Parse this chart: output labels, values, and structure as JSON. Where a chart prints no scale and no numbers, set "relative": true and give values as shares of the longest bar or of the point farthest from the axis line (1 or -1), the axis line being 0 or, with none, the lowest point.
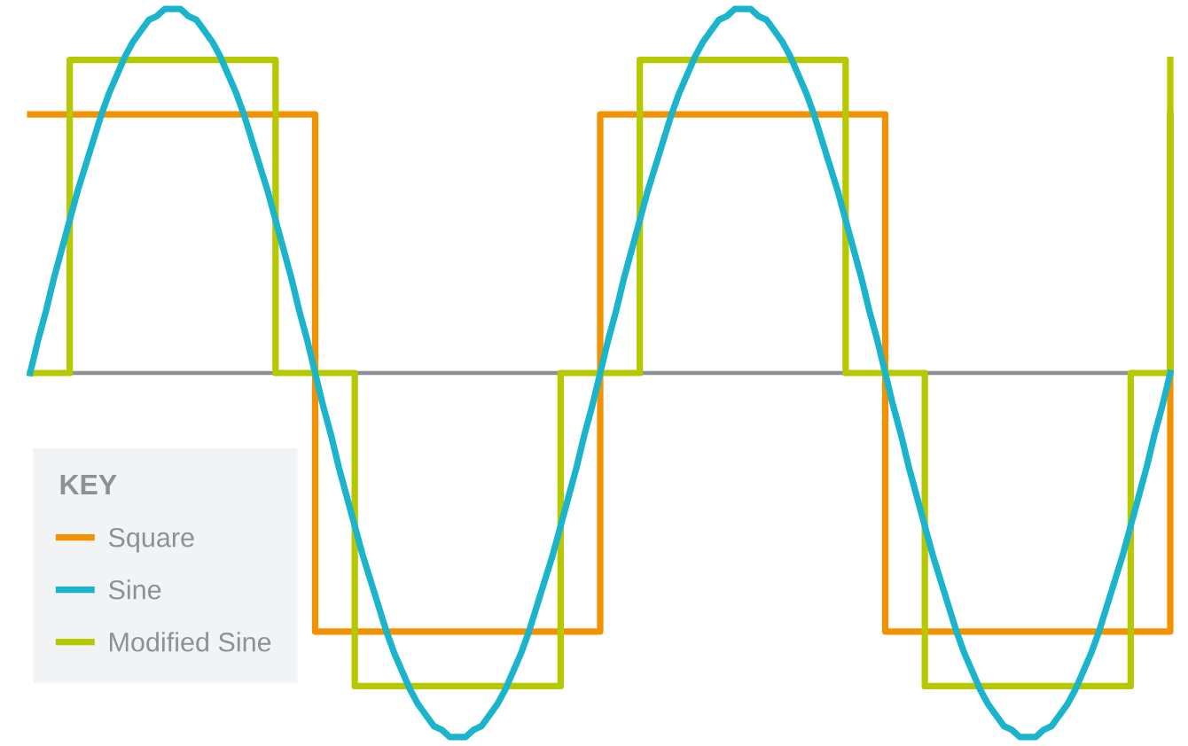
{
  "chart_data": {
    "type": "line",
    "relative": true,
    "legend_title": "KEY",
    "legend": "bottom left",
    "marker": "none",
    "line_style": "solid",
    "categories": [
      null,
      null,
      null,
      null,
      null,
      null,
      null,
      null,
      null,
      null,
      null,
      null,
      null,
      null,
      null,
      null,
      null,
      null,
      null,
      null,
      null,
      null,
      null,
      null,
      null,
      null,
      null,
      null,
      null,
      null,
      null,
      null,
      null,
      null,
      null,
      null,
      null,
      null,
      null,
      null,
      null,
      null,
      null,
      null,
      null,
      null,
      null,
      null,
      null,
      null,
      null,
      null,
      null,
      null,
      null,
      null,
      null,
      null,
      null,
      null,
      null,
      null,
      null,
      null,
      null,
      null,
      null,
      null,
      null,
      null,
      null,
      null,
      null,
      null,
      null,
      null,
      null,
      null,
      null,
      null,
      null,
      null,
      null,
      null,
      null,
      null,
      null,
      null,
      null,
      null,
      null,
      null,
      null,
      null,
      null,
      null,
      null,
      null,
      null,
      null,
      null,
      null,
      null,
      null,
      null,
      null,
      null,
      null,
      null,
      null,
      null,
      null,
      null,
      null,
      null,
      null,
      null,
      null,
      null,
      null,
      null,
      null,
      null,
      null,
      null,
      null,
      null,
      null,
      null,
      null,
      null,
      null,
      null,
      null,
      null,
      null,
      null,
      null,
      null,
      null,
      null,
      null,
      null,
      null,
      null
    ],
    "series": [
      {
        "name": "Square",
        "type": "step",
        "color": "#f39200",
        "values": [
          0.71,
          0.71,
          0.71,
          0.71,
          0.71,
          0.71,
          0.71,
          0.71,
          0.71,
          0.71,
          0.71,
          0.71,
          0.71,
          0.71,
          0.71,
          0.71,
          0.71,
          0.71,
          0.71,
          0.71,
          0.71,
          0.71,
          0.71,
          0.71,
          0.71,
          0.71,
          0.71,
          0.71,
          0.71,
          0.71,
          0.71,
          0.71,
          0.71,
          0.71,
          0.71,
          0.71,
          -0.71,
          -0.71,
          -0.71,
          -0.71,
          -0.71,
          -0.71,
          -0.71,
          -0.71,
          -0.71,
          -0.71,
          -0.71,
          -0.71,
          -0.71,
          -0.71,
          -0.71,
          -0.71,
          -0.71,
          -0.71,
          -0.71,
          -0.71,
          -0.71,
          -0.71,
          -0.71,
          -0.71,
          -0.71,
          -0.71,
          -0.71,
          -0.71,
          -0.71,
          -0.71,
          -0.71,
          -0.71,
          -0.71,
          -0.71,
          -0.71,
          -0.71,
          0.71,
          0.71,
          0.71,
          0.71,
          0.71,
          0.71,
          0.71,
          0.71,
          0.71,
          0.71,
          0.71,
          0.71,
          0.71,
          0.71,
          0.71,
          0.71,
          0.71,
          0.71,
          0.71,
          0.71,
          0.71,
          0.71,
          0.71,
          0.71,
          0.71,
          0.71,
          0.71,
          0.71,
          0.71,
          0.71,
          0.71,
          0.71,
          0.71,
          0.71,
          0.71,
          0.71,
          -0.71,
          -0.71,
          -0.71,
          -0.71,
          -0.71,
          -0.71,
          -0.71,
          -0.71,
          -0.71,
          -0.71,
          -0.71,
          -0.71,
          -0.71,
          -0.71,
          -0.71,
          -0.71,
          -0.71,
          -0.71,
          -0.71,
          -0.71,
          -0.71,
          -0.71,
          -0.71,
          -0.71,
          -0.71,
          -0.71,
          -0.71,
          -0.71,
          -0.71,
          -0.71,
          -0.71,
          -0.71,
          -0.71,
          -0.71,
          -0.71,
          -0.71,
          0.71
        ]
      },
      {
        "name": "Sine",
        "color": "#1ab5cc",
        "values": [
          0,
          0.09,
          0.17,
          0.26,
          0.34,
          0.42,
          0.5,
          0.57,
          0.64,
          0.71,
          0.77,
          0.82,
          0.87,
          0.91,
          0.94,
          0.97,
          0.98,
          1,
          1,
          1,
          0.98,
          0.97,
          0.94,
          0.91,
          0.87,
          0.82,
          0.77,
          0.71,
          0.64,
          0.57,
          0.5,
          0.42,
          0.34,
          0.26,
          0.17,
          0.09,
          0,
          -0.09,
          -0.17,
          -0.26,
          -0.34,
          -0.42,
          -0.5,
          -0.57,
          -0.64,
          -0.71,
          -0.77,
          -0.82,
          -0.87,
          -0.91,
          -0.94,
          -0.97,
          -0.98,
          -1,
          -1,
          -1,
          -0.98,
          -0.97,
          -0.94,
          -0.91,
          -0.87,
          -0.82,
          -0.77,
          -0.71,
          -0.64,
          -0.57,
          -0.5,
          -0.42,
          -0.34,
          -0.26,
          -0.17,
          -0.09,
          0,
          0.09,
          0.17,
          0.26,
          0.34,
          0.42,
          0.5,
          0.57,
          0.64,
          0.71,
          0.77,
          0.82,
          0.87,
          0.91,
          0.94,
          0.97,
          0.98,
          1,
          1,
          1,
          0.98,
          0.97,
          0.94,
          0.91,
          0.87,
          0.82,
          0.77,
          0.71,
          0.64,
          0.57,
          0.5,
          0.42,
          0.34,
          0.26,
          0.17,
          0.09,
          0,
          -0.09,
          -0.17,
          -0.26,
          -0.34,
          -0.42,
          -0.5,
          -0.57,
          -0.64,
          -0.71,
          -0.77,
          -0.82,
          -0.87,
          -0.91,
          -0.94,
          -0.97,
          -0.98,
          -1,
          -1,
          -1,
          -0.98,
          -0.97,
          -0.94,
          -0.91,
          -0.87,
          -0.82,
          -0.77,
          -0.71,
          -0.64,
          -0.57,
          -0.5,
          -0.42,
          -0.34,
          -0.26,
          -0.17,
          -0.09,
          0
        ]
      },
      {
        "name": "Modified Sine",
        "type": "step",
        "color": "#b5c800",
        "values": [
          0,
          0,
          0,
          0,
          0,
          0.86,
          0.86,
          0.86,
          0.86,
          0.86,
          0.86,
          0.86,
          0.86,
          0.86,
          0.86,
          0.86,
          0.86,
          0.86,
          0.86,
          0.86,
          0.86,
          0.86,
          0.86,
          0.86,
          0.86,
          0.86,
          0.86,
          0.86,
          0.86,
          0.86,
          0.86,
          0,
          0,
          0,
          0,
          0,
          0,
          0,
          0,
          0,
          0,
          -0.86,
          -0.86,
          -0.86,
          -0.86,
          -0.86,
          -0.86,
          -0.86,
          -0.86,
          -0.86,
          -0.86,
          -0.86,
          -0.86,
          -0.86,
          -0.86,
          -0.86,
          -0.86,
          -0.86,
          -0.86,
          -0.86,
          -0.86,
          -0.86,
          -0.86,
          -0.86,
          -0.86,
          -0.86,
          -0.86,
          0,
          0,
          0,
          0,
          0,
          0,
          0,
          0,
          0,
          0,
          0.86,
          0.86,
          0.86,
          0.86,
          0.86,
          0.86,
          0.86,
          0.86,
          0.86,
          0.86,
          0.86,
          0.86,
          0.86,
          0.86,
          0.86,
          0.86,
          0.86,
          0.86,
          0.86,
          0.86,
          0.86,
          0.86,
          0.86,
          0.86,
          0.86,
          0.86,
          0,
          0,
          0,
          0,
          0,
          0,
          0,
          0,
          0,
          0,
          -0.86,
          -0.86,
          -0.86,
          -0.86,
          -0.86,
          -0.86,
          -0.86,
          -0.86,
          -0.86,
          -0.86,
          -0.86,
          -0.86,
          -0.86,
          -0.86,
          -0.86,
          -0.86,
          -0.86,
          -0.86,
          -0.86,
          -0.86,
          -0.86,
          -0.86,
          -0.86,
          -0.86,
          -0.86,
          -0.86,
          0,
          0,
          0,
          0,
          0,
          0.86
        ]
      }
    ]
  }
}
